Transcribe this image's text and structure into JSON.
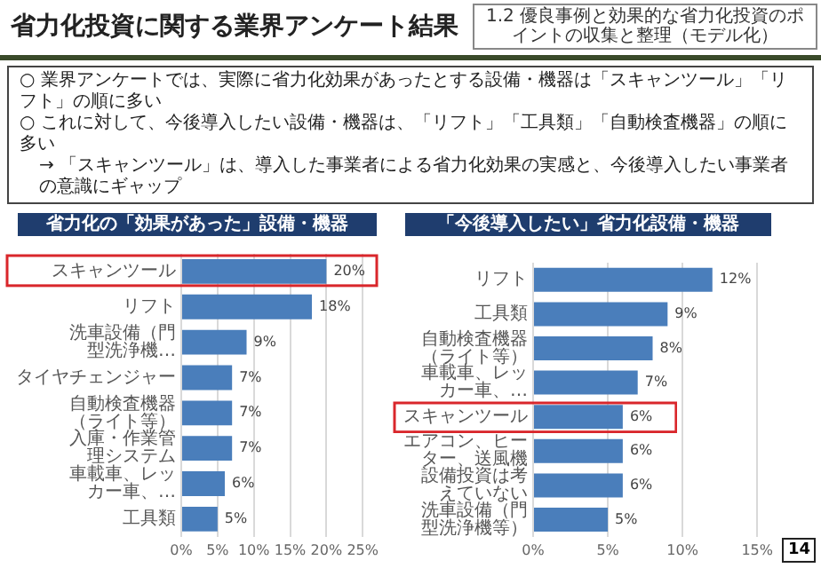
{
  "chart_data": [
    {
      "type": "other",
      "title": "省力化投資に関する業界アンケート結果",
      "annotations": [
        "1.2 優良事例と効果的な省力化投資のポイントの収集と整理（モデル化）",
        "○ 業界アンケートでは、実際に省力化効果があったとする設備・機器は「スキャンツール」「リフト」の順に多い",
        "○ これに対して、今後導入したい設備・機器は、「リフト」「工具類」「自動検査機器」の順に多い",
        "→ 「スキャンツール」は、導入した事業者による省力化効果の実感と、今後導入したい事業者の意識にギャップ",
        "14"
      ]
    },
    {
      "type": "bar",
      "orientation": "horizontal",
      "title": "省力化の「効果があった」設備・機器",
      "categories": [
        "スキャンツール",
        "リフト",
        "洗車設備（門型洗浄機…",
        "タイヤチェンジャー",
        "自動検査機器（ライト等）",
        "入庫・作業管理システム",
        "車載車、レッカー車、…",
        "工具類"
      ],
      "values": [
        20,
        18,
        9,
        7,
        7,
        7,
        6,
        5
      ],
      "value_labels": [
        "20%",
        "18%",
        "9%",
        "7%",
        "7%",
        "7%",
        "6%",
        "5%"
      ],
      "color": "#4a7ebb",
      "xlim": [
        0,
        25
      ],
      "xticks": [
        {
          "value": 0,
          "label": "0%"
        },
        {
          "value": 5,
          "label": "5%"
        },
        {
          "value": 10,
          "label": "10%"
        },
        {
          "value": 15,
          "label": "15%"
        },
        {
          "value": 20,
          "label": "20%"
        },
        {
          "value": 25,
          "label": "25%"
        }
      ],
      "grid": "x",
      "legend": false
    },
    {
      "type": "bar",
      "orientation": "horizontal",
      "title": "「今後導入したい」省力化設備・機器",
      "categories": [
        "リフト",
        "工具類",
        "自動検査機器（ライト等）",
        "車載車、レッカー車、…",
        "スキャンツール",
        "エアコン、ヒーター、送風機",
        "設備投資は考えていない",
        "洗車設備（門型洗浄機等）"
      ],
      "values": [
        12,
        9,
        8,
        7,
        6,
        6,
        6,
        5
      ],
      "value_labels": [
        "12%",
        "9%",
        "8%",
        "7%",
        "6%",
        "6%",
        "6%",
        "5%"
      ],
      "color": "#4a7ebb",
      "xlim": [
        0,
        15
      ],
      "xticks": [
        {
          "value": 0,
          "label": "0%"
        },
        {
          "value": 5,
          "label": "5%"
        },
        {
          "value": 10,
          "label": "10%"
        },
        {
          "value": 15,
          "label": "15%"
        }
      ],
      "grid": "x",
      "legend": false
    }
  ]
}
